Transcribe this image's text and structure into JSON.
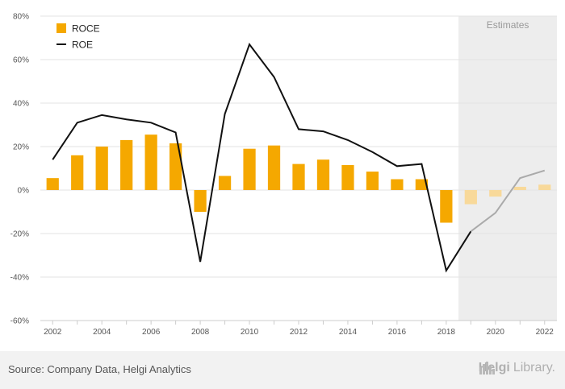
{
  "chart_data": {
    "type": "bar",
    "title": "",
    "xlabel": "",
    "ylabel": "",
    "x": [
      2002,
      2003,
      2004,
      2005,
      2006,
      2007,
      2008,
      2009,
      2010,
      2011,
      2012,
      2013,
      2014,
      2015,
      2016,
      2017,
      2018,
      2019,
      2020,
      2021,
      2022
    ],
    "x_tick_labels": [
      "2002",
      "2004",
      "2006",
      "2008",
      "2010",
      "2012",
      "2014",
      "2016",
      "2018",
      "2020",
      "2022"
    ],
    "x_tick_values": [
      2002,
      2004,
      2006,
      2008,
      2010,
      2012,
      2014,
      2016,
      2018,
      2020,
      2022
    ],
    "ylim": [
      -60,
      80
    ],
    "y_ticks": [
      -60,
      -40,
      -20,
      0,
      20,
      40,
      60,
      80
    ],
    "y_tick_labels": [
      "-60%",
      "-40%",
      "-20%",
      "0%",
      "20%",
      "40%",
      "60%",
      "80%"
    ],
    "grid": true,
    "legend_position": "top-left",
    "estimates_from": 2019,
    "estimates_label": "Estimates",
    "series": [
      {
        "name": "ROCE",
        "type": "bar",
        "color": "#f5a800",
        "estimate_color": "#f8d99a",
        "values": [
          5.5,
          16,
          20,
          23,
          25.5,
          21.5,
          -10,
          6.5,
          19,
          20.5,
          12,
          14,
          11.5,
          8.5,
          5,
          5,
          -15,
          -6.5,
          -3,
          1.5,
          2.5
        ]
      },
      {
        "name": "ROE",
        "type": "line",
        "color": "#111111",
        "estimate_color": "#aaaaaa",
        "values": [
          14,
          31,
          34.5,
          32.5,
          31,
          26.5,
          -33,
          35,
          67,
          52,
          28,
          27,
          23,
          17.5,
          11,
          12,
          -37,
          -19,
          -10.5,
          5.5,
          9
        ]
      }
    ]
  },
  "footer": {
    "source": "Source: Company Data, Helgi Analytics",
    "brand_bold": "Helgi",
    "brand_light": "Library."
  }
}
